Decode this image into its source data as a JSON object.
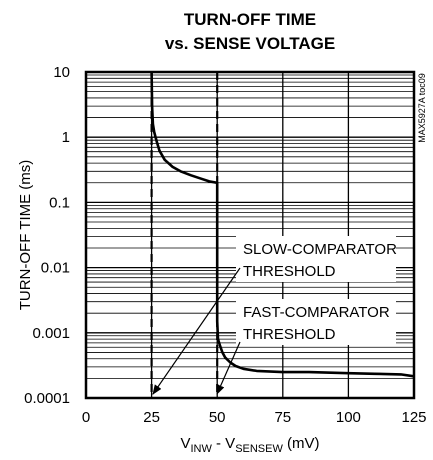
{
  "chart_data": {
    "type": "line",
    "title": [
      "TURN-OFF TIME",
      "vs. SENSE VOLTAGE"
    ],
    "xlabel": {
      "main": "V",
      "sub1": "INW",
      "mid": " - V",
      "sub2": "SENSEW",
      "tail": " (mV)"
    },
    "ylabel": "TURN-OFF TIME (ms)",
    "side_label": "MAX5927A toc09",
    "xlim": [
      0,
      125
    ],
    "ylim": [
      0.0001,
      10
    ],
    "yscale": "log",
    "grid": true,
    "x_ticks": [
      {
        "value": 0,
        "label": "0"
      },
      {
        "value": 25,
        "label": "25"
      },
      {
        "value": 50,
        "label": "50"
      },
      {
        "value": 75,
        "label": "75"
      },
      {
        "value": 100,
        "label": "100"
      },
      {
        "value": 125,
        "label": "125"
      }
    ],
    "y_ticks": [
      {
        "value": 10,
        "label": "10"
      },
      {
        "value": 1,
        "label": "1"
      },
      {
        "value": 0.1,
        "label": "0.1"
      },
      {
        "value": 0.01,
        "label": "0.01"
      },
      {
        "value": 0.001,
        "label": "0.001"
      },
      {
        "value": 0.0001,
        "label": "0.0001"
      }
    ],
    "series": [
      {
        "x": [
          25,
          25.2,
          25.5,
          26,
          27,
          28,
          30,
          33,
          36,
          40,
          44,
          47,
          50,
          50,
          50.3,
          51,
          52,
          53,
          55,
          57,
          60,
          65,
          75,
          85,
          100,
          110,
          120,
          125
        ],
        "y": [
          10,
          3,
          1.6,
          1.2,
          0.85,
          0.62,
          0.45,
          0.35,
          0.3,
          0.26,
          0.23,
          0.21,
          0.2,
          0.0015,
          0.0008,
          0.00065,
          0.0005,
          0.00042,
          0.00035,
          0.00031,
          0.00028,
          0.00026,
          0.00025,
          0.00025,
          0.00024,
          0.000235,
          0.00023,
          0.000215
        ]
      }
    ],
    "thresholds": [
      {
        "x": 25,
        "label": "SLOW-COMPARATOR THRESHOLD"
      },
      {
        "x": 50,
        "label": "FAST-COMPARATOR THRESHOLD"
      }
    ],
    "annotations": [
      {
        "line1": "SLOW-COMPARATOR",
        "line2": "THRESHOLD",
        "points_to_x": 25
      },
      {
        "line1": "FAST-COMPARATOR",
        "line2": "THRESHOLD",
        "points_to_x": 50
      }
    ]
  }
}
